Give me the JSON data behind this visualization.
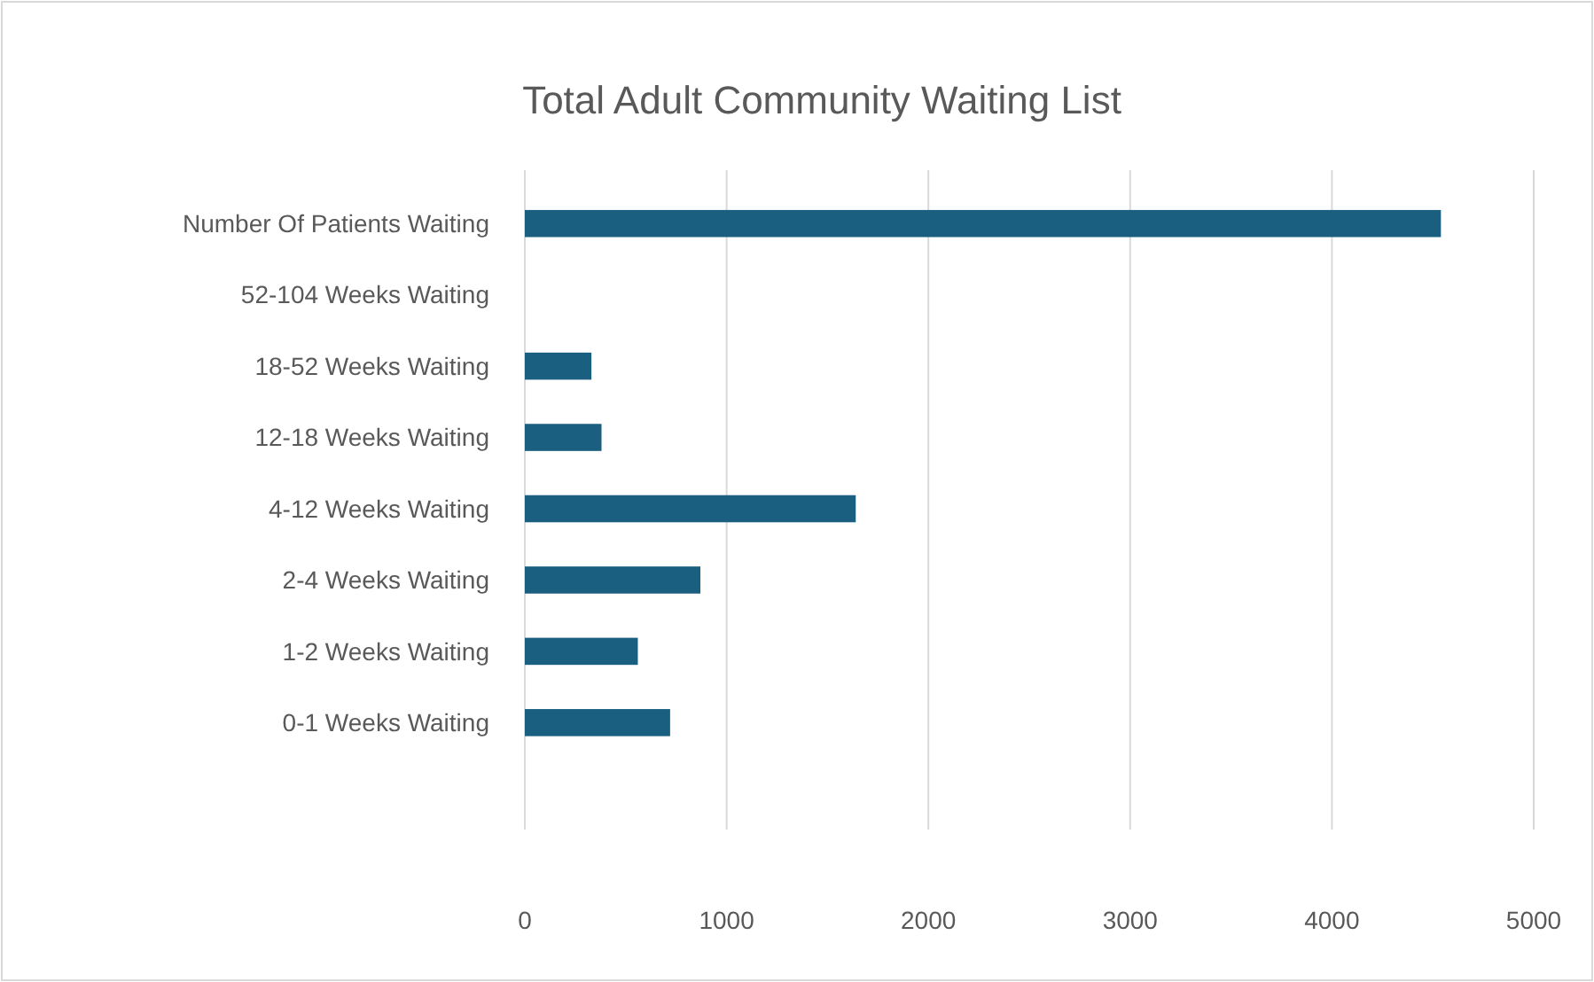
{
  "chart_data": {
    "type": "bar",
    "orientation": "horizontal",
    "title": "Total Adult Community Waiting List",
    "categories": [
      "Number Of Patients Waiting",
      "52-104 Weeks Waiting",
      "18-52 Weeks Waiting",
      "12-18 Weeks Waiting",
      "4-12 Weeks Waiting",
      "2-4 Weeks Waiting",
      "1-2 Weeks Waiting",
      "0-1 Weeks Waiting",
      null
    ],
    "values": [
      4540,
      null,
      330,
      380,
      1640,
      870,
      560,
      720,
      null
    ],
    "color": "#1a5e80",
    "xlim": [
      0,
      5000
    ],
    "xticks": [
      0,
      1000,
      2000,
      3000,
      4000,
      5000
    ],
    "grid": "x"
  }
}
